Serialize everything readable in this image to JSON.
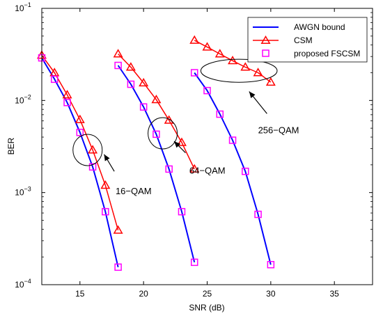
{
  "chart_data": {
    "type": "line",
    "title": "",
    "xlabel": "SNR (dB)",
    "ylabel": "BER",
    "xlim": [
      12,
      38
    ],
    "ylim": [
      0.0001,
      0.1
    ],
    "yscale": "log",
    "xticks": [
      15,
      20,
      25,
      30,
      35
    ],
    "xtick_labels": [
      "15",
      "20",
      "25",
      "30",
      "35"
    ],
    "yticks": [
      0.0001,
      0.001,
      0.01,
      0.1
    ],
    "ytick_labels": [
      {
        "base": "10",
        "exp": "−4"
      },
      {
        "base": "10",
        "exp": "−3"
      },
      {
        "base": "10",
        "exp": "−2"
      },
      {
        "base": "10",
        "exp": "−1"
      }
    ],
    "grid": false,
    "legend_position": "top-right",
    "series": [
      {
        "name": "AWGN bound",
        "color": "#0000ff",
        "marker": "none",
        "curves": [
          {
            "x": [
              12,
              13,
              14,
              15,
              16,
              17,
              18
            ],
            "y": [
              0.029,
              0.017,
              0.0095,
              0.0045,
              0.0019,
              0.00062,
              0.000155
            ]
          },
          {
            "x": [
              18,
              19,
              20,
              21,
              22,
              23,
              24
            ],
            "y": [
              0.024,
              0.015,
              0.0085,
              0.0043,
              0.0018,
              0.00062,
              0.000175
            ]
          },
          {
            "x": [
              24,
              25,
              26,
              27,
              28,
              29,
              30
            ],
            "y": [
              0.02,
              0.0128,
              0.0071,
              0.0037,
              0.0017,
              0.00058,
              0.000165
            ]
          }
        ]
      },
      {
        "name": "CSM",
        "color": "#ff0000",
        "marker": "triangle",
        "curves": [
          {
            "x": [
              12,
              13,
              14,
              15,
              16,
              17,
              18
            ],
            "y": [
              0.031,
              0.02,
              0.0115,
              0.0062,
              0.0029,
              0.0012,
              0.00039
            ]
          },
          {
            "x": [
              18,
              19,
              20,
              21,
              22,
              23,
              24
            ],
            "y": [
              0.032,
              0.023,
              0.0155,
              0.0102,
              0.0061,
              0.0035,
              0.0018
            ]
          },
          {
            "x": [
              24,
              25,
              26,
              27,
              28,
              29,
              30
            ],
            "y": [
              0.045,
              0.038,
              0.032,
              0.027,
              0.023,
              0.02,
              0.0158
            ]
          }
        ]
      },
      {
        "name": "proposed FSCSM",
        "color": "#ff00ff",
        "marker": "square",
        "curves": [
          {
            "x": [
              12,
              13,
              14,
              15,
              16,
              17,
              18
            ],
            "y": [
              0.029,
              0.017,
              0.0095,
              0.0045,
              0.0019,
              0.00062,
              0.000155
            ]
          },
          {
            "x": [
              18,
              19,
              20,
              21,
              22,
              23,
              24
            ],
            "y": [
              0.024,
              0.015,
              0.0085,
              0.0043,
              0.0018,
              0.00062,
              0.000175
            ]
          },
          {
            "x": [
              24,
              25,
              26,
              27,
              28,
              29,
              30
            ],
            "y": [
              0.02,
              0.0128,
              0.0071,
              0.0037,
              0.0017,
              0.00058,
              0.000165
            ]
          }
        ]
      }
    ],
    "annotations": [
      {
        "text": "16−QAM",
        "ellipse_center": [
          15.6,
          0.0029
        ],
        "ellipse_rx_db": 1.15,
        "ellipse_ry_decades": 0.17,
        "arrow_tail": [
          17.7,
          0.0017
        ],
        "arrow_head": [
          16.9,
          0.0026
        ],
        "text_at": [
          17.8,
          0.00105
        ]
      },
      {
        "text": "64−QAM",
        "ellipse_center": [
          21.5,
          0.0044
        ],
        "ellipse_rx_db": 1.15,
        "ellipse_ry_decades": 0.17,
        "arrow_tail": [
          23.3,
          0.0027
        ],
        "arrow_head": [
          22.4,
          0.0036
        ],
        "text_at": [
          23.6,
          0.00175
        ]
      },
      {
        "text": "256−QAM",
        "ellipse_center": [
          27.5,
          0.021
        ],
        "ellipse_rx_db": 3.0,
        "ellipse_ry_decades": 0.125,
        "arrow_tail": [
          29.7,
          0.0072
        ],
        "arrow_head": [
          28.3,
          0.0125
        ],
        "text_at": [
          29.0,
          0.0048
        ]
      }
    ]
  }
}
